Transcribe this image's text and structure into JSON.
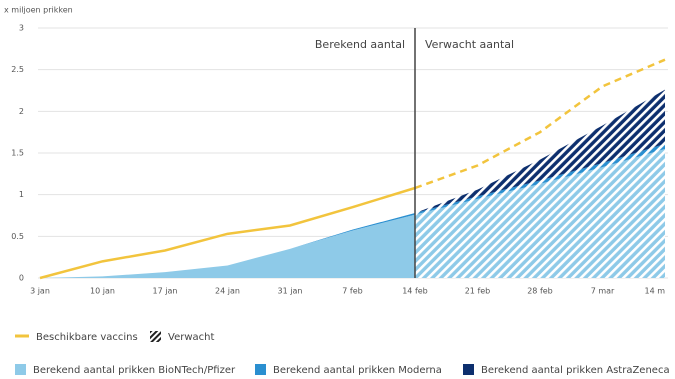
{
  "chart_data": {
    "type": "stacked_area",
    "y_label": "x miljoen prikken",
    "categories": [
      "3 jan",
      "10 jan",
      "17 jan",
      "24 jan",
      "31 jan",
      "7 feb",
      "14 feb",
      "21 feb",
      "28 feb",
      "7 mar",
      "14 m"
    ],
    "ylim": [
      0,
      3
    ],
    "yticks": [
      0,
      0.5,
      1,
      1.5,
      2,
      2.5,
      3
    ],
    "grid": true,
    "divider_category": "14 feb",
    "annotations": [
      "Berekend aantal",
      "Verwacht aantal"
    ],
    "expected_label": "Verwacht",
    "line": {
      "name": "Beschikbare vaccins",
      "color": "#f2c43d",
      "values": [
        0,
        0.2,
        0.33,
        0.53,
        0.63,
        0.85,
        1.08,
        1.35,
        1.75,
        2.3,
        2.62
      ]
    },
    "series": [
      {
        "name": "Berekend aantal prikken BioNTech/Pfizer",
        "color": "#8ecae8",
        "values": [
          0,
          0.02,
          0.07,
          0.15,
          0.35,
          0.57,
          0.76,
          0.95,
          1.13,
          1.33,
          1.55
        ]
      },
      {
        "name": "Berekend aantal prikken Moderna",
        "color": "#2a8fd0",
        "values": [
          0,
          0,
          0,
          0,
          0,
          0.01,
          0.02,
          0.03,
          0.04,
          0.05,
          0.06
        ]
      },
      {
        "name": "Berekend aantal prikken AstraZeneca",
        "color": "#0d2f6e",
        "values": [
          0,
          0,
          0,
          0,
          0,
          0,
          0,
          0.08,
          0.25,
          0.45,
          0.65
        ]
      }
    ]
  }
}
